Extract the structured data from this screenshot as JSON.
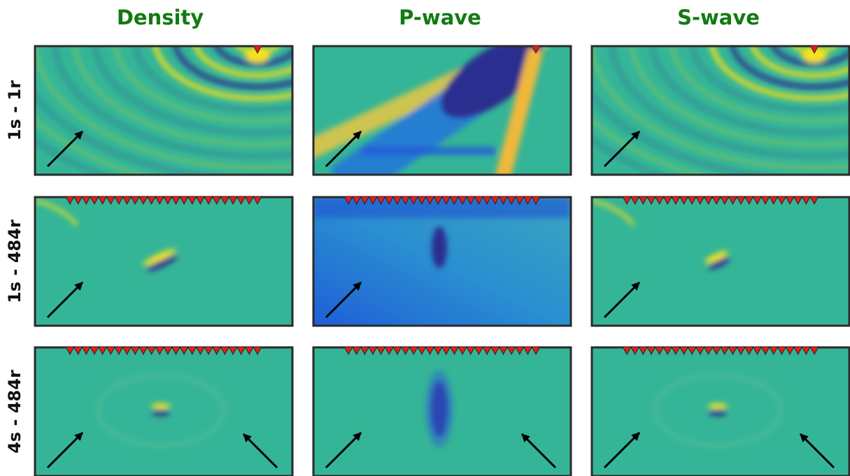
{
  "columns": [
    "Density",
    "P-wave",
    "S-wave"
  ],
  "rows": [
    "1s - 1r",
    "1s - 484r",
    "4s - 484r"
  ]
}
